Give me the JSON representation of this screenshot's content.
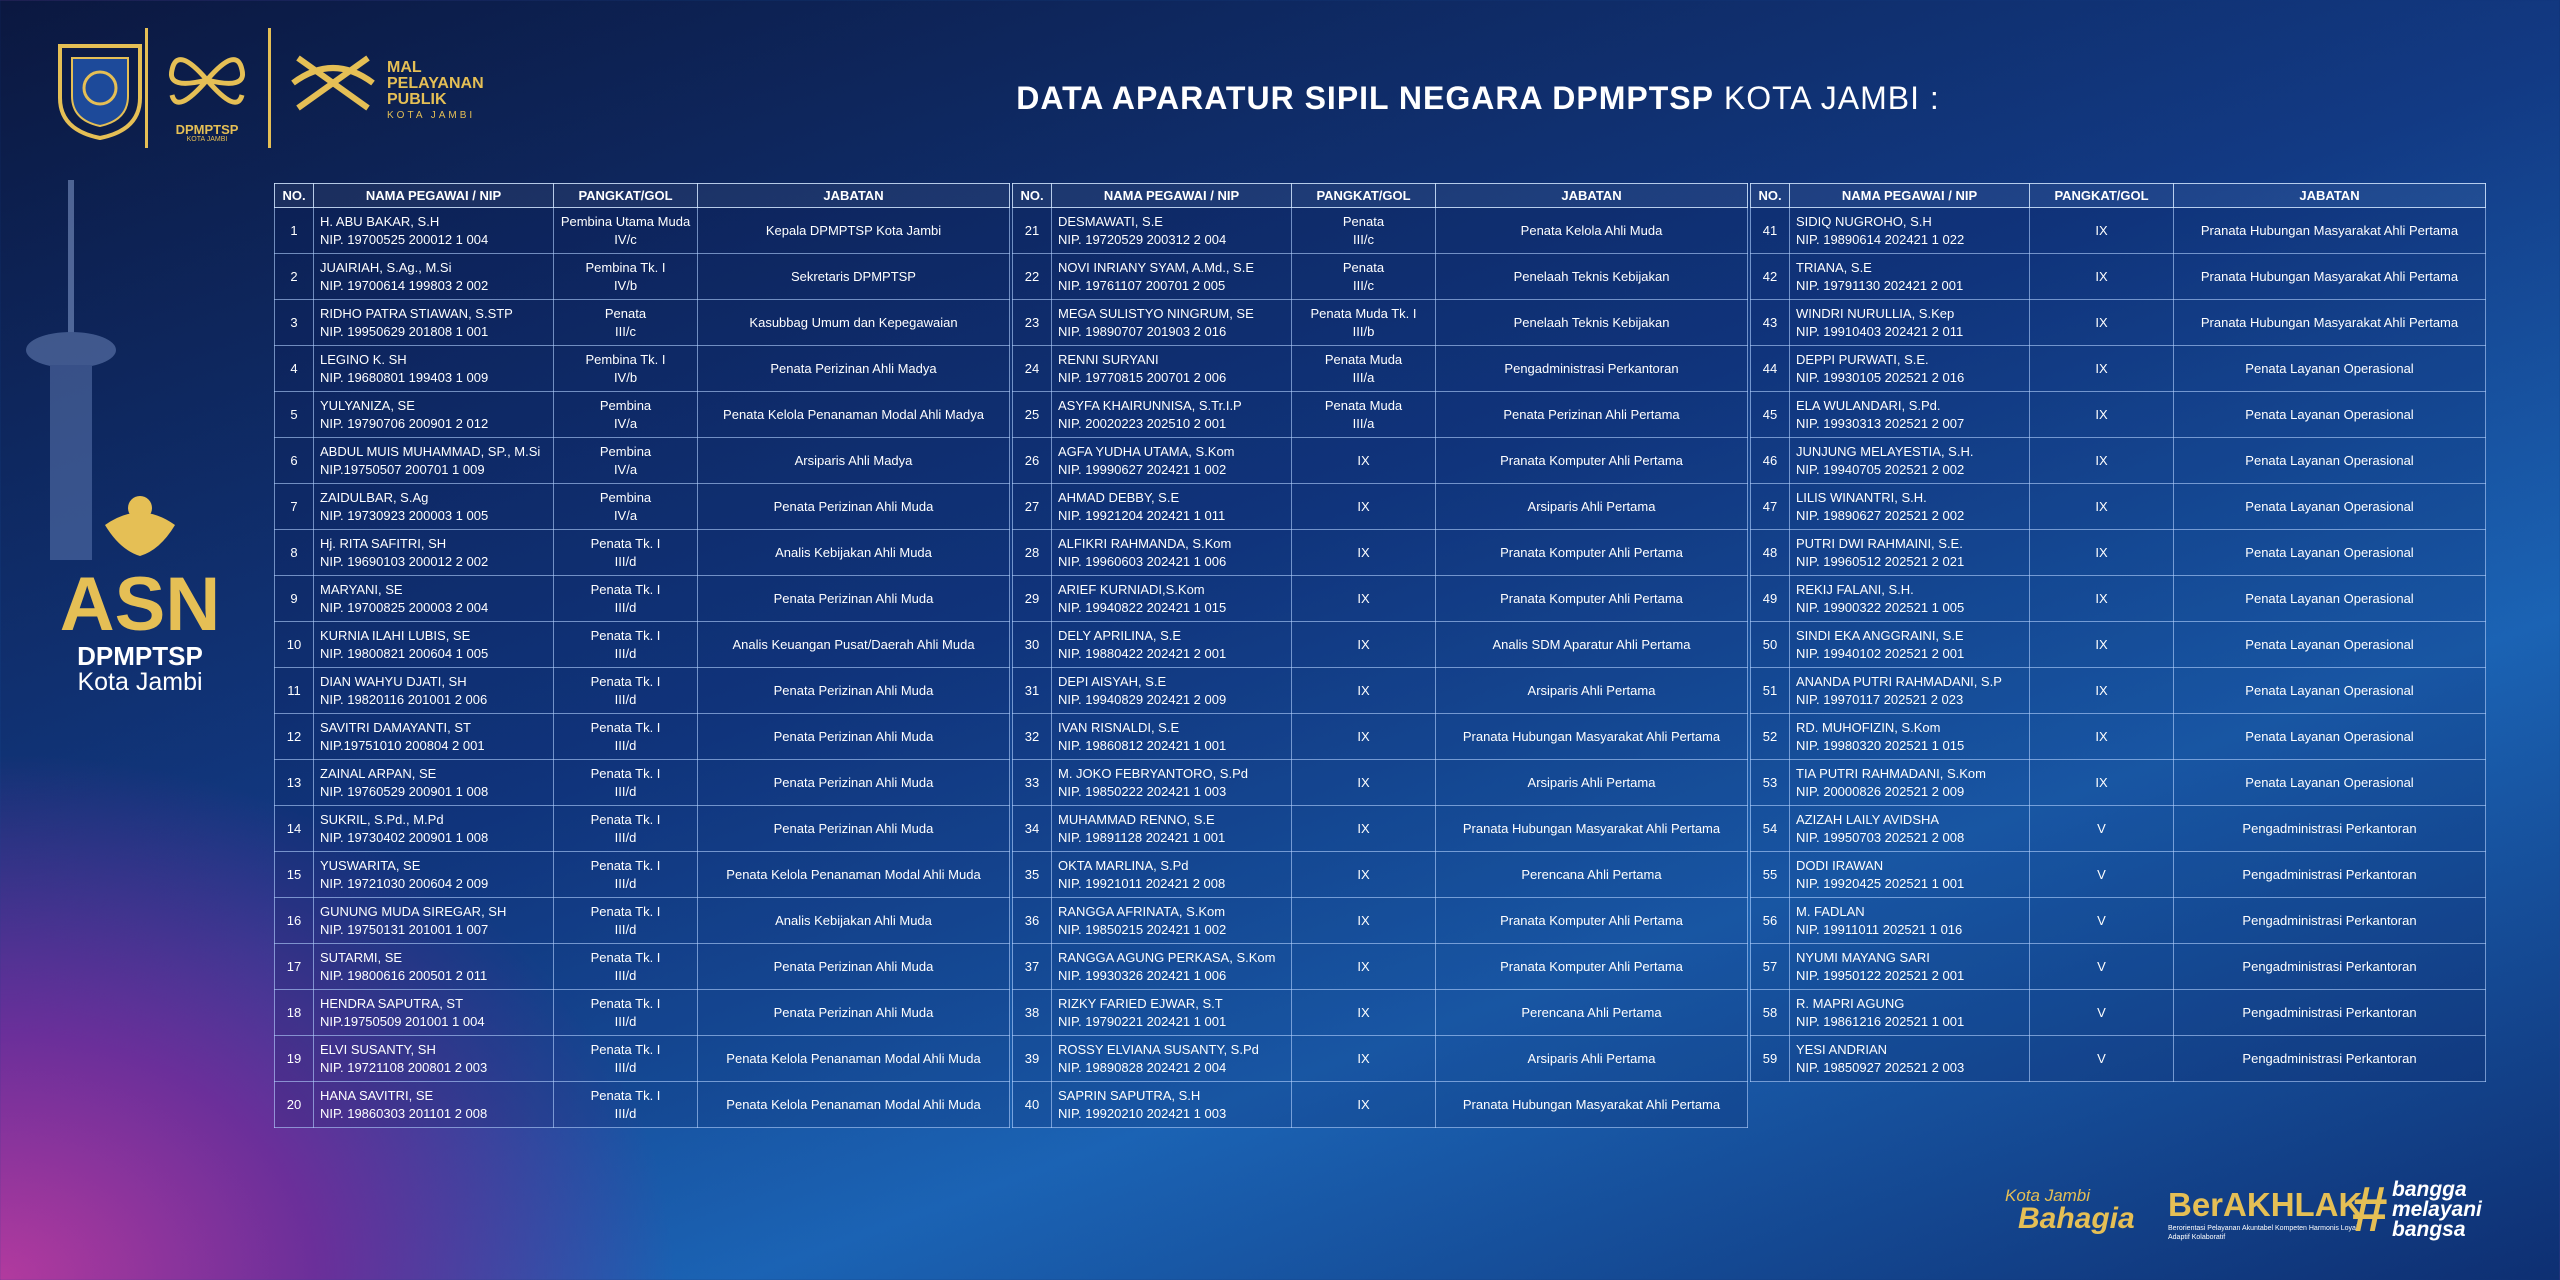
{
  "header": {
    "title_bold": "DATA APARATUR SIPIL NEGARA DPMPTSP",
    "title_rest": "KOTA JAMBI :"
  },
  "logos": {
    "dpmptsp": "DPMPTSP",
    "dpmptsp_sub": "KOTA JAMBI",
    "mpp": [
      "MAL",
      "PELAYANAN",
      "PUBLIK"
    ],
    "mpp_sub": "KOTA JAMBI"
  },
  "side": {
    "asn": "ASN",
    "org": "DPMPTSP",
    "city": "Kota Jambi"
  },
  "columns": [
    "NO.",
    "NAMA PEGAWAI / NIP",
    "PANGKAT/GOL",
    "JABATAN"
  ],
  "tables": [
    {
      "rows": [
        [
          1,
          "H. ABU BAKAR, S.H",
          "NIP. 19700525 200012 1 004",
          [
            "Pembina Utama Muda",
            "IV/c"
          ],
          "Kepala DPMPTSP Kota Jambi"
        ],
        [
          2,
          "JUAIRIAH, S.Ag., M.Si",
          "NIP. 19700614 199803 2 002",
          [
            "Pembina  Tk. I",
            "IV/b"
          ],
          "Sekretaris DPMPTSP"
        ],
        [
          3,
          "RIDHO PATRA STIAWAN, S.STP",
          "NIP. 19950629 201808 1 001",
          [
            "Penata",
            "III/c"
          ],
          "Kasubbag Umum dan Kepegawaian"
        ],
        [
          4,
          "LEGINO K. SH",
          "NIP. 19680801 199403 1 009",
          [
            "Pembina Tk. I",
            "IV/b"
          ],
          "Penata Perizinan Ahli Madya"
        ],
        [
          5,
          "YULYANIZA, SE",
          "NIP. 19790706 200901 2 012",
          [
            "Pembina",
            "IV/a"
          ],
          "Penata Kelola Penanaman Modal Ahli Madya"
        ],
        [
          6,
          "ABDUL MUIS MUHAMMAD, SP., M.Si",
          "NIP.19750507 200701 1 009",
          [
            "Pembina",
            "IV/a"
          ],
          "Arsiparis Ahli Madya"
        ],
        [
          7,
          "ZAIDULBAR, S.Ag",
          "NIP. 19730923 200003 1 005",
          [
            "Pembina",
            "IV/a"
          ],
          "Penata Perizinan Ahli Muda"
        ],
        [
          8,
          "Hj. RITA SAFITRI, SH",
          "NIP. 19690103 200012 2 002",
          [
            "Penata Tk. I",
            "III/d"
          ],
          "Analis Kebijakan Ahli Muda"
        ],
        [
          9,
          "MARYANI, SE",
          "NIP. 19700825 200003 2 004",
          [
            "Penata Tk. I",
            "III/d"
          ],
          "Penata Perizinan Ahli Muda"
        ],
        [
          10,
          "KURNIA ILAHI LUBIS, SE",
          "NIP. 19800821 200604 1 005",
          [
            "Penata Tk. I",
            "III/d"
          ],
          "Analis Keuangan Pusat/Daerah Ahli Muda"
        ],
        [
          11,
          "DIAN WAHYU DJATI, SH",
          "NIP. 19820116 201001 2 006",
          [
            "Penata Tk. I",
            "III/d"
          ],
          "Penata Perizinan Ahli Muda"
        ],
        [
          12,
          "SAVITRI DAMAYANTI, ST",
          "NIP.19751010 200804 2 001",
          [
            "Penata Tk. I",
            "III/d"
          ],
          "Penata Perizinan Ahli Muda"
        ],
        [
          13,
          "ZAINAL ARPAN, SE",
          "NIP. 19760529 200901 1 008",
          [
            "Penata Tk. I",
            "III/d"
          ],
          "Penata Perizinan Ahli Muda"
        ],
        [
          14,
          "SUKRIL, S.Pd., M.Pd",
          "NIP. 19730402 200901 1 008",
          [
            "Penata Tk. I",
            "III/d"
          ],
          "Penata Perizinan Ahli Muda"
        ],
        [
          15,
          "YUSWARITA, SE",
          "NIP. 19721030 200604 2 009",
          [
            "Penata Tk. I",
            "III/d"
          ],
          "Penata Kelola Penanaman Modal Ahli Muda"
        ],
        [
          16,
          "GUNUNG MUDA SIREGAR, SH",
          "NIP. 19750131 201001 1 007",
          [
            "Penata Tk. I",
            "III/d"
          ],
          "Analis Kebijakan Ahli Muda"
        ],
        [
          17,
          "SUTARMI, SE",
          "NIP. 19800616 200501 2 011",
          [
            "Penata Tk. I",
            "III/d"
          ],
          "Penata Perizinan Ahli Muda"
        ],
        [
          18,
          "HENDRA SAPUTRA, ST",
          "NIP.19750509 201001 1 004",
          [
            "Penata Tk. I",
            "III/d"
          ],
          "Penata Perizinan Ahli Muda"
        ],
        [
          19,
          "ELVI SUSANTY, SH",
          "NIP. 19721108 200801 2 003",
          [
            "Penata Tk. I",
            "III/d"
          ],
          "Penata Kelola Penanaman Modal Ahli Muda"
        ],
        [
          20,
          "HANA SAVITRI, SE",
          "NIP. 19860303 201101 2 008",
          [
            "Penata Tk. I",
            "III/d"
          ],
          "Penata Kelola Penanaman Modal Ahli Muda"
        ]
      ]
    },
    {
      "rows": [
        [
          21,
          "DESMAWATI, S.E",
          "NIP. 19720529 200312 2 004",
          [
            "Penata",
            "III/c"
          ],
          "Penata Kelola Ahli Muda"
        ],
        [
          22,
          "NOVI INRIANY SYAM, A.Md., S.E",
          "NIP. 19761107 200701 2 005",
          [
            "Penata",
            "III/c"
          ],
          "Penelaah Teknis Kebijakan"
        ],
        [
          23,
          "MEGA SULISTYO NINGRUM, SE",
          "NIP. 19890707 201903 2 016",
          [
            "Penata Muda Tk. I",
            "III/b"
          ],
          "Penelaah Teknis Kebijakan"
        ],
        [
          24,
          "RENNI SURYANI",
          "NIP. 19770815 200701 2 006",
          [
            "Penata Muda",
            "III/a"
          ],
          "Pengadministrasi Perkantoran"
        ],
        [
          25,
          "ASYFA KHAIRUNNISA, S.Tr.I.P",
          "NIP. 20020223 202510 2 001",
          [
            "Penata Muda",
            "III/a"
          ],
          "Penata Perizinan Ahli Pertama"
        ],
        [
          26,
          "AGFA YUDHA UTAMA, S.Kom",
          "NIP. 19990627 202421 1 002",
          [
            "IX"
          ],
          "Pranata Komputer Ahli Pertama"
        ],
        [
          27,
          "AHMAD DEBBY, S.E",
          "NIP. 19921204 202421 1 011",
          [
            "IX"
          ],
          "Arsiparis Ahli Pertama"
        ],
        [
          28,
          "ALFIKRI RAHMANDA, S.Kom",
          "NIP. 19960603 202421 1 006",
          [
            "IX"
          ],
          "Pranata Komputer Ahli Pertama"
        ],
        [
          29,
          "ARIEF KURNIADI,S.Kom",
          "NIP. 19940822 202421 1 015",
          [
            "IX"
          ],
          "Pranata Komputer Ahli Pertama"
        ],
        [
          30,
          "DELY APRILINA, S.E",
          "NIP. 19880422 202421 2 001",
          [
            "IX"
          ],
          "Analis SDM Aparatur Ahli Pertama"
        ],
        [
          31,
          "DEPI AISYAH, S.E",
          "NIP. 19940829 202421 2 009",
          [
            "IX"
          ],
          "Arsiparis Ahli Pertama"
        ],
        [
          32,
          "IVAN RISNALDI, S.E",
          "NIP. 19860812 202421 1 001",
          [
            "IX"
          ],
          "Pranata Hubungan Masyarakat Ahli Pertama"
        ],
        [
          33,
          "M. JOKO FEBRYANTORO, S.Pd",
          "NIP. 19850222 202421 1 003",
          [
            "IX"
          ],
          "Arsiparis Ahli Pertama"
        ],
        [
          34,
          "MUHAMMAD RENNO, S.E",
          "NIP. 19891128 202421 1 001",
          [
            "IX"
          ],
          "Pranata Hubungan Masyarakat Ahli Pertama"
        ],
        [
          35,
          "OKTA MARLINA, S.Pd",
          "NIP. 19921011 202421 2 008",
          [
            "IX"
          ],
          "Perencana Ahli Pertama"
        ],
        [
          36,
          "RANGGA AFRINATA, S.Kom",
          "NIP. 19850215 202421 1 002",
          [
            "IX"
          ],
          "Pranata Komputer Ahli Pertama"
        ],
        [
          37,
          "RANGGA AGUNG PERKASA, S.Kom",
          "NIP. 19930326 202421 1 006",
          [
            "IX"
          ],
          "Pranata Komputer Ahli Pertama"
        ],
        [
          38,
          "RIZKY FARIED EJWAR, S.T",
          "NIP. 19790221 202421 1 001",
          [
            "IX"
          ],
          "Perencana Ahli Pertama"
        ],
        [
          39,
          "ROSSY ELVIANA SUSANTY, S.Pd",
          "NIP. 19890828 202421 2 004",
          [
            "IX"
          ],
          "Arsiparis Ahli Pertama"
        ],
        [
          40,
          "SAPRIN SAPUTRA, S.H",
          "NIP. 19920210 202421 1 003",
          [
            "IX"
          ],
          "Pranata Hubungan Masyarakat Ahli Pertama"
        ]
      ]
    },
    {
      "rows": [
        [
          41,
          "SIDIQ NUGROHO, S.H",
          "NIP. 19890614 202421 1 022",
          [
            "IX"
          ],
          "Pranata Hubungan Masyarakat Ahli Pertama"
        ],
        [
          42,
          "TRIANA, S.E",
          "NIP. 19791130 202421 2 001",
          [
            "IX"
          ],
          "Pranata Hubungan Masyarakat Ahli Pertama"
        ],
        [
          43,
          "WINDRI NURULLIA, S.Kep",
          "NIP. 19910403 202421 2 011",
          [
            "IX"
          ],
          "Pranata Hubungan Masyarakat Ahli Pertama"
        ],
        [
          44,
          "DEPPI PURWATI, S.E.",
          "NIP. 19930105 202521 2 016",
          [
            "IX"
          ],
          "Penata Layanan Operasional"
        ],
        [
          45,
          "ELA WULANDARI, S.Pd.",
          "NIP. 19930313 202521 2 007",
          [
            "IX"
          ],
          "Penata Layanan Operasional"
        ],
        [
          46,
          "JUNJUNG MELAYESTIA, S.H.",
          "NIP. 19940705 202521 2 002",
          [
            "IX"
          ],
          "Penata Layanan Operasional"
        ],
        [
          47,
          "LILIS WINANTRI, S.H.",
          "NIP. 19890627 202521 2 002",
          [
            "IX"
          ],
          "Penata Layanan Operasional"
        ],
        [
          48,
          "PUTRI DWI RAHMAINI, S.E.",
          "NIP. 19960512 202521 2 021",
          [
            "IX"
          ],
          "Penata Layanan Operasional"
        ],
        [
          49,
          "REKIJ FALANI, S.H.",
          "NIP. 19900322 202521 1 005",
          [
            "IX"
          ],
          "Penata Layanan Operasional"
        ],
        [
          50,
          "SINDI EKA ANGGRAINI, S.E",
          "NIP. 19940102 202521 2 001",
          [
            "IX"
          ],
          "Penata Layanan Operasional"
        ],
        [
          51,
          "ANANDA PUTRI RAHMADANI, S.P",
          "NIP. 19970117 202521 2 023",
          [
            "IX"
          ],
          "Penata Layanan Operasional"
        ],
        [
          52,
          "RD. MUHOFIZIN, S.Kom",
          "NIP. 19980320 202521 1 015",
          [
            "IX"
          ],
          "Penata Layanan Operasional"
        ],
        [
          53,
          "TIA PUTRI RAHMADANI, S.Kom",
          "NIP. 20000826 202521 2 009",
          [
            "IX"
          ],
          "Penata Layanan Operasional"
        ],
        [
          54,
          "AZIZAH LAILY AVIDSHA",
          "NIP. 19950703 202521 2 008",
          [
            "V"
          ],
          "Pengadministrasi Perkantoran"
        ],
        [
          55,
          "DODI IRAWAN",
          "NIP. 19920425 202521 1 001",
          [
            "V"
          ],
          "Pengadministrasi Perkantoran"
        ],
        [
          56,
          "M. FADLAN",
          "NIP. 19911011 202521 1 016",
          [
            "V"
          ],
          "Pengadministrasi Perkantoran"
        ],
        [
          57,
          "NYUMI MAYANG SARI",
          "NIP. 19950122 202521 2 001",
          [
            "V"
          ],
          "Pengadministrasi Perkantoran"
        ],
        [
          58,
          "R. MAPRI AGUNG",
          "NIP. 19861216 202521 1 001",
          [
            "V"
          ],
          "Pengadministrasi Perkantoran"
        ],
        [
          59,
          "YESI ANDRIAN",
          "NIP. 19850927 202521 2 003",
          [
            "V"
          ],
          "Pengadministrasi Perkantoran"
        ]
      ]
    }
  ],
  "footer": {
    "city_small": "Kota Jambi",
    "city_big": "Bahagia",
    "brand": "BerAKHLAK",
    "brand_sub": "Berorientasi Pelayanan Akuntabel Kompeten Harmonis Loyal Adaptif Kolaboratif",
    "hashtag": [
      "bangga",
      "melayani",
      "bangsa"
    ]
  }
}
